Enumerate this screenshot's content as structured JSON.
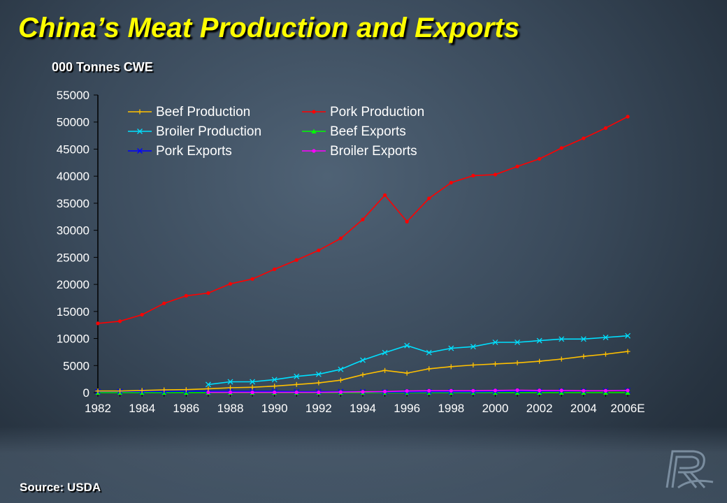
{
  "slide": {
    "title": "China’s Meat Production and Exports",
    "units": "000 Tonnes CWE",
    "source": "Source: USDA"
  },
  "colors": {
    "title": "#ffff00",
    "text": "#ffffff"
  },
  "chart_data": {
    "type": "line",
    "title": "",
    "xlabel": "",
    "ylabel": "",
    "ylim": [
      0,
      55000
    ],
    "yticks": [
      0,
      5000,
      10000,
      15000,
      20000,
      25000,
      30000,
      35000,
      40000,
      45000,
      50000,
      55000
    ],
    "x": [
      "1982",
      "1983",
      "1984",
      "1985",
      "1986",
      "1987",
      "1988",
      "1989",
      "1990",
      "1991",
      "1992",
      "1993",
      "1994",
      "1995",
      "1996",
      "1997",
      "1998",
      "1999",
      "2000",
      "2001",
      "2002",
      "2003",
      "2004",
      "2005",
      "2006E"
    ],
    "xtick_labels": [
      "1982",
      "1984",
      "1986",
      "1988",
      "1990",
      "1992",
      "1994",
      "1996",
      "1998",
      "2000",
      "2002",
      "2004",
      "2006E"
    ],
    "legend_position": "top-left",
    "series": [
      {
        "name": "Beef Production",
        "color": "#ffc000",
        "marker": "plus",
        "values": [
          300,
          300,
          400,
          500,
          550,
          700,
          900,
          1000,
          1200,
          1500,
          1800,
          2300,
          3300,
          4100,
          3600,
          4400,
          4800,
          5100,
          5300,
          5500,
          5800,
          6200,
          6700,
          7100,
          7600
        ]
      },
      {
        "name": "Pork Production",
        "color": "#ff0000",
        "marker": "dot",
        "values": [
          12800,
          13200,
          14400,
          16500,
          17900,
          18400,
          20100,
          21000,
          22800,
          24500,
          26300,
          28500,
          32000,
          36500,
          31600,
          35900,
          38800,
          40100,
          40300,
          41800,
          43200,
          45200,
          47000,
          48900,
          51000
        ]
      },
      {
        "name": "Broiler Production",
        "color": "#00e0ff",
        "marker": "x",
        "values": [
          null,
          null,
          null,
          null,
          null,
          1500,
          2000,
          2000,
          2400,
          3000,
          3400,
          4300,
          6000,
          7400,
          8700,
          7400,
          8200,
          8500,
          9300,
          9300,
          9600,
          9900,
          9900,
          10200,
          10500
        ]
      },
      {
        "name": "Beef Exports",
        "color": "#00ff00",
        "marker": "triangle",
        "values": [
          0,
          0,
          0,
          0,
          0,
          0,
          0,
          0,
          0,
          0,
          0,
          0,
          0,
          0,
          0,
          0,
          0,
          0,
          0,
          0,
          0,
          0,
          0,
          0,
          0
        ]
      },
      {
        "name": "Pork Exports",
        "color": "#0000ff",
        "marker": "x",
        "values": [
          200,
          200,
          200,
          200,
          250,
          250,
          250,
          250,
          250,
          200,
          200,
          200,
          150,
          100,
          100,
          150,
          150,
          150,
          200,
          250,
          250,
          300,
          300,
          350,
          400
        ]
      },
      {
        "name": "Broiler Exports",
        "color": "#ff00ff",
        "marker": "dot",
        "values": [
          null,
          null,
          null,
          null,
          null,
          50,
          50,
          50,
          50,
          50,
          50,
          100,
          150,
          200,
          300,
          350,
          350,
          350,
          400,
          450,
          400,
          400,
          350,
          350,
          400
        ]
      }
    ]
  }
}
